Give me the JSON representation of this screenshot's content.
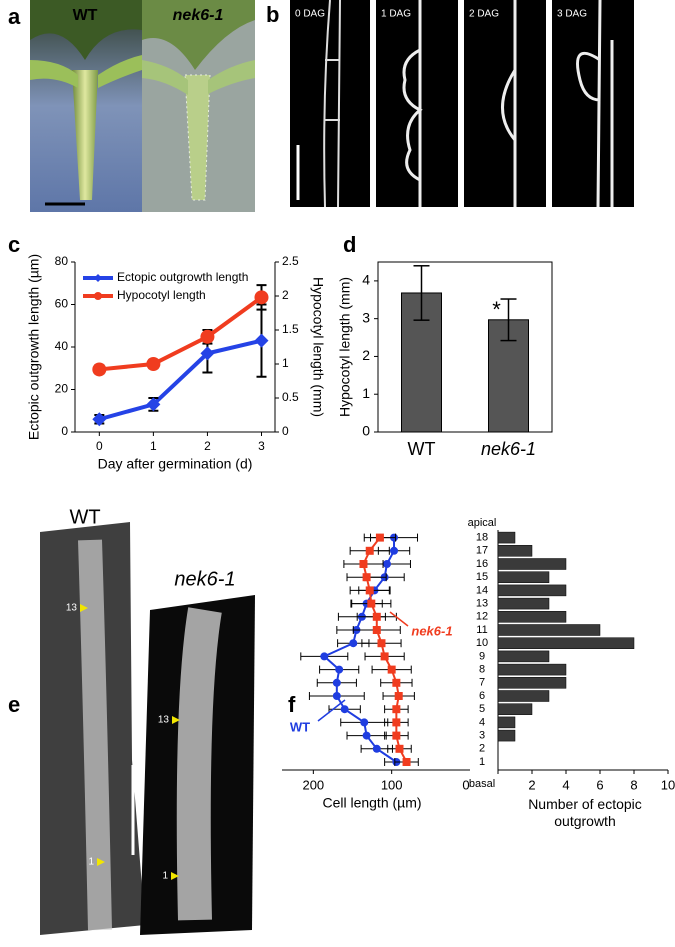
{
  "figure": {
    "panel_labels": [
      "a",
      "b",
      "c",
      "d",
      "e",
      "f"
    ],
    "panel_a": {
      "labels": [
        "WT",
        "nek6-1"
      ]
    },
    "panel_b": {
      "labels": [
        "0 DAG",
        "1 DAG",
        "2 DAG",
        "3 DAG"
      ]
    },
    "panel_e": {
      "labels": [
        "WT",
        "nek6-1"
      ],
      "markers": [
        "13",
        "1",
        "13",
        "1"
      ]
    }
  },
  "chart_data": [
    {
      "type": "line",
      "x": [
        0,
        1,
        2,
        3
      ],
      "xlim": [
        -0.45,
        3.25
      ],
      "xticks": [
        0,
        1,
        2,
        3
      ],
      "xlabel": "Day after germination (d)",
      "ylabel": "Ectopic outgrowth length (µm)",
      "y2label": "Hypocotyl length (mm)",
      "ylim": [
        0,
        80
      ],
      "yticks": [
        0,
        20,
        40,
        60,
        80
      ],
      "y2lim": [
        0,
        2.5
      ],
      "y2ticks": [
        0,
        0.5,
        1,
        1.5,
        2,
        2.5
      ],
      "legend": "upper left",
      "series": [
        {
          "name": "Ectopic outgrowth length",
          "color": "#2543e6",
          "marker": "diamond",
          "values": [
            6,
            13,
            37,
            43
          ],
          "errors": [
            2,
            3,
            9,
            17
          ]
        },
        {
          "name": "Hypocotyl length",
          "color": "#f03c1f",
          "marker": "circle",
          "axis": "y2",
          "values": [
            0.92,
            1.0,
            1.4,
            1.98
          ],
          "errors": [
            0.06,
            0.06,
            0.1,
            0.18
          ]
        }
      ]
    },
    {
      "type": "bar",
      "categories": [
        "WT",
        "nek6-1"
      ],
      "values": [
        3.68,
        2.97
      ],
      "errors": [
        0.72,
        0.55
      ],
      "color": "#555555",
      "ylabel": "Hypocotyl length (mm)",
      "ylim": [
        0,
        4.5
      ],
      "yticks": [
        0,
        1,
        2,
        3,
        4
      ],
      "annotations": [
        "*"
      ]
    },
    {
      "type": "line",
      "orientation": "horizontal",
      "categories": [
        "1",
        "2",
        "3",
        "4",
        "5",
        "6",
        "7",
        "8",
        "9",
        "10",
        "11",
        "12",
        "13",
        "14",
        "15",
        "16",
        "17",
        "18"
      ],
      "top_label": "apical",
      "bottom_label": "basal",
      "xlabel": "Cell length (µm)",
      "xlim": [
        240,
        0
      ],
      "xticks": [
        200,
        100
      ],
      "series": [
        {
          "name": "WT",
          "color": "#1f3de0",
          "marker": "circle",
          "values": [
            94,
            119,
            132,
            135,
            160,
            170,
            170,
            167,
            186,
            149,
            145,
            138,
            132,
            122,
            109,
            106,
            97,
            97
          ],
          "errors": [
            15,
            20,
            25,
            30,
            20,
            35,
            25,
            25,
            30,
            20,
            25,
            30,
            20,
            20,
            25,
            30,
            20,
            30
          ]
        },
        {
          "name": "nek6-1",
          "color": "#f03c1f",
          "marker": "square",
          "values": [
            81,
            90,
            94,
            94,
            94,
            91,
            94,
            100,
            109,
            113,
            119,
            119,
            126,
            128,
            132,
            136,
            128,
            115
          ],
          "errors": [
            15,
            15,
            15,
            15,
            15,
            20,
            20,
            25,
            25,
            25,
            30,
            25,
            25,
            25,
            25,
            25,
            25,
            20
          ]
        }
      ]
    },
    {
      "type": "bar",
      "orientation": "horizontal",
      "color": "#3a3a3a",
      "values": [
        0,
        0,
        1,
        1,
        2,
        3,
        4,
        4,
        3,
        8,
        6,
        4,
        3,
        4,
        3,
        4,
        2,
        1
      ],
      "xlim": [
        0,
        10
      ],
      "xticks": [
        0,
        2,
        4,
        6,
        8,
        10
      ],
      "xlabel": "Number of ectopic outgrowth"
    }
  ]
}
